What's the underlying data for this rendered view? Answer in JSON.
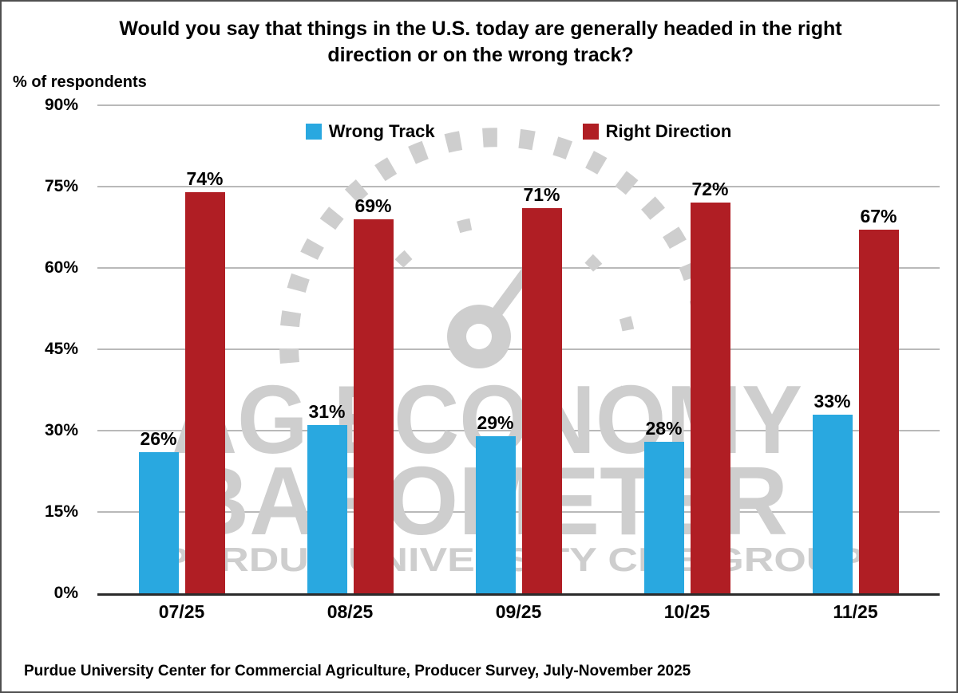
{
  "title": "Would you say that things in the U.S. today are generally headed in the right direction or on the wrong track?",
  "y_axis_label": "% of respondents",
  "footer": "Purdue University Center for Commercial Agriculture, Producer Survey, July-November 2025",
  "watermark": {
    "line1": "AG ECONOMY",
    "line2": "BAROMETER",
    "line3": "PURDUE UNIVERSITY CME GROUP",
    "color": "#cecece"
  },
  "colors": {
    "wrong_track": "#29a8e0",
    "right_direction": "#b01e24",
    "gridline": "#b9b9b9",
    "axis": "#2b2b2b"
  },
  "chart_data": {
    "type": "bar",
    "title": "Would you say that things in the U.S. today are generally headed in the right direction or on the wrong track?",
    "xlabel": "",
    "ylabel": "% of respondents",
    "categories": [
      "07/25",
      "08/25",
      "09/25",
      "10/25",
      "11/25"
    ],
    "series": [
      {
        "name": "Wrong Track",
        "color": "#29a8e0",
        "values": [
          26,
          31,
          29,
          28,
          33
        ]
      },
      {
        "name": "Right Direction",
        "color": "#b01e24",
        "values": [
          74,
          69,
          71,
          72,
          67
        ]
      }
    ],
    "ylim": [
      0,
      90
    ],
    "yticks": [
      0,
      15,
      30,
      45,
      60,
      75,
      90
    ],
    "ytick_labels": [
      "0%",
      "15%",
      "30%",
      "45%",
      "60%",
      "75%",
      "90%"
    ],
    "grid": true,
    "legend_position": "top-center",
    "value_suffix": "%"
  }
}
